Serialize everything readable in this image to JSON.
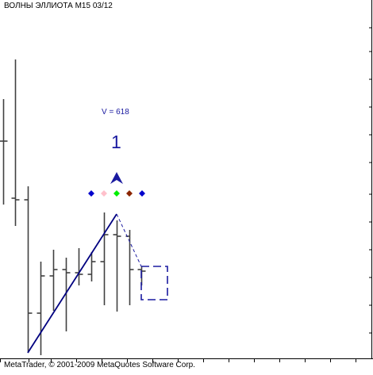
{
  "window": {
    "title": "ВОЛНЫ ЭЛЛИОТА M15 03/12",
    "copyright": "MetaTrader, © 2001-2009 MetaQuotes Software Corp."
  },
  "annotations": {
    "value_label": "V = 618",
    "wave_label": "1"
  },
  "colors": {
    "background": "#ffffff",
    "bars": "#404040",
    "wave_line": "#000080",
    "dashed_line": "#1a1aa0",
    "diamonds": [
      "#0000cc",
      "#ffc0cb",
      "#00ee00",
      "#8b2500",
      "#0000cc"
    ]
  },
  "icons": {
    "arrow": "up-arrow-icon",
    "markers": "diamond-marker-icon"
  }
}
